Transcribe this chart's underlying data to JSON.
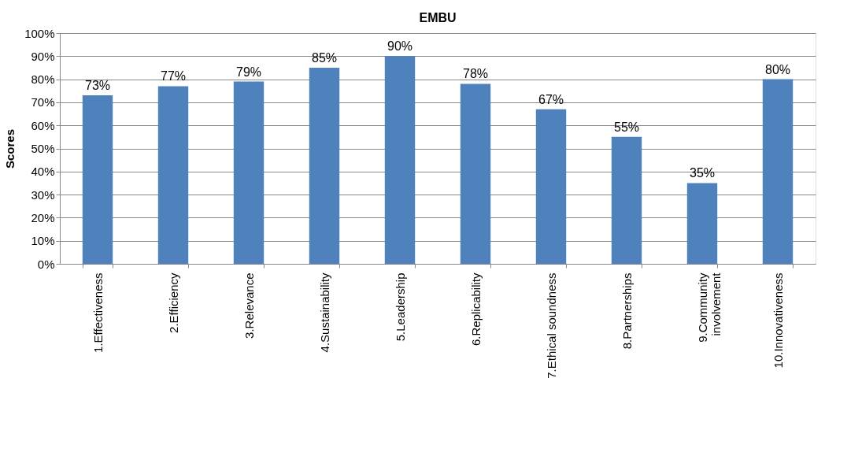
{
  "chart_data": {
    "type": "bar",
    "title": "EMBU",
    "ylabel": "Scores",
    "categories": [
      "1.Effectiveness",
      "2.Efficiency",
      "3.Relevance",
      "4.Sustainability",
      "5.Leadership",
      "6.Replicability",
      "7.Ethical soundness",
      "8.Partnerships",
      "9.Community\ninvolvement",
      "10.Innovativeness"
    ],
    "values": [
      73,
      77,
      79,
      85,
      90,
      78,
      67,
      55,
      35,
      80
    ],
    "value_labels": [
      "73%",
      "77%",
      "79%",
      "85%",
      "90%",
      "78%",
      "67%",
      "55%",
      "35%",
      "80%"
    ],
    "color": "#4f81bd",
    "ylim": [
      0,
      100
    ],
    "yticks": [
      {
        "value": 0,
        "label": "0%"
      },
      {
        "value": 10,
        "label": "10%"
      },
      {
        "value": 20,
        "label": "20%"
      },
      {
        "value": 30,
        "label": "30%"
      },
      {
        "value": 40,
        "label": "40%"
      },
      {
        "value": 50,
        "label": "50%"
      },
      {
        "value": 60,
        "label": "60%"
      },
      {
        "value": 70,
        "label": "70%"
      },
      {
        "value": 80,
        "label": "80%"
      },
      {
        "value": 90,
        "label": "90%"
      },
      {
        "value": 100,
        "label": "100%"
      }
    ],
    "grid": "y"
  }
}
